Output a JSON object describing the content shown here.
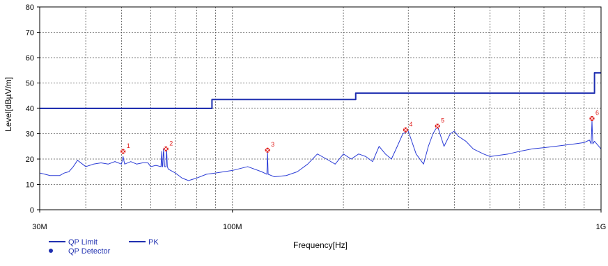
{
  "chart_data": {
    "type": "line",
    "title": "",
    "xlabel": "Frequency[Hz]",
    "ylabel": "Level[dBµV/m]",
    "x_scale": "log",
    "xlim": [
      30000000,
      1000000000
    ],
    "ylim": [
      0,
      80
    ],
    "grid": true,
    "x_ticks": [
      {
        "value": 30000000,
        "label": "30M"
      },
      {
        "value": 100000000,
        "label": "100M"
      },
      {
        "value": 1000000000,
        "label": "1G"
      }
    ],
    "y_ticks": [
      0,
      10,
      20,
      30,
      40,
      50,
      60,
      70,
      80
    ],
    "colors": {
      "limit": "#1f2fb0",
      "pk": "#2b3cd6",
      "marker": "#e0201e",
      "grid": "#555555"
    },
    "series": [
      {
        "name": "QP Limit",
        "x": [
          30000000,
          88000000,
          88000000,
          216000000,
          216000000,
          960000000,
          960000000,
          1000000000
        ],
        "y": [
          40,
          40,
          43.5,
          43.5,
          46,
          46,
          54,
          54
        ]
      },
      {
        "name": "PK",
        "x": [
          30000000,
          31000000,
          32000000,
          34000000,
          35000000,
          36000000,
          37000000,
          38000000,
          40000000,
          42000000,
          44000000,
          46000000,
          48000000,
          50000000,
          50500000,
          51000000,
          53000000,
          55000000,
          57000000,
          59000000,
          60000000,
          62000000,
          64000000,
          64300000,
          64500000,
          64700000,
          65000000,
          65500000,
          66000000,
          66300000,
          66600000,
          67000000,
          70000000,
          73000000,
          76000000,
          80000000,
          85000000,
          90000000,
          100000000,
          110000000,
          120000000,
          124000000,
          124500000,
          125000000,
          130000000,
          140000000,
          150000000,
          160000000,
          170000000,
          180000000,
          190000000,
          200000000,
          210000000,
          220000000,
          230000000,
          240000000,
          250000000,
          260000000,
          270000000,
          280000000,
          290000000,
          300000000,
          315000000,
          330000000,
          340000000,
          350000000,
          360000000,
          375000000,
          390000000,
          400000000,
          410000000,
          430000000,
          450000000,
          480000000,
          500000000,
          530000000,
          560000000,
          600000000,
          650000000,
          700000000,
          750000000,
          800000000,
          850000000,
          900000000,
          930000000,
          940000000,
          945000000,
          950000000,
          960000000,
          980000000,
          1000000000
        ],
        "y": [
          14.5,
          14,
          13.5,
          13.5,
          14.5,
          15,
          17,
          19.5,
          17,
          18,
          18.5,
          18,
          19,
          18,
          21,
          18,
          19,
          18,
          18.5,
          18.5,
          17,
          17.5,
          17,
          23,
          17,
          17,
          24,
          17,
          17,
          24,
          17,
          16,
          14.5,
          12.5,
          11.5,
          12.5,
          14,
          14.5,
          15.5,
          17,
          15,
          14,
          23,
          14,
          13,
          13.5,
          15,
          18,
          22,
          20,
          18,
          22,
          20,
          22,
          21,
          19,
          25,
          22,
          20,
          25,
          30,
          31,
          22,
          18,
          25,
          30,
          33,
          25,
          30,
          31,
          29,
          27,
          24,
          22,
          21,
          21.5,
          22,
          23,
          24,
          24.5,
          25,
          25.5,
          26,
          26.5,
          27.5,
          26,
          35,
          26,
          27,
          25.5,
          24
        ]
      }
    ],
    "markers": [
      {
        "label": "1",
        "x": 50500000,
        "y": 23
      },
      {
        "label": "2",
        "x": 66000000,
        "y": 24
      },
      {
        "label": "3",
        "x": 124500000,
        "y": 23.5
      },
      {
        "label": "4",
        "x": 295000000,
        "y": 31.5
      },
      {
        "label": "5",
        "x": 360000000,
        "y": 33
      },
      {
        "label": "6",
        "x": 945000000,
        "y": 36
      }
    ],
    "legend": [
      {
        "name": "QP Limit",
        "kind": "line"
      },
      {
        "name": "PK",
        "kind": "line"
      },
      {
        "name": "QP Detector",
        "kind": "dot"
      }
    ],
    "legend_placement": "bottom-left"
  }
}
